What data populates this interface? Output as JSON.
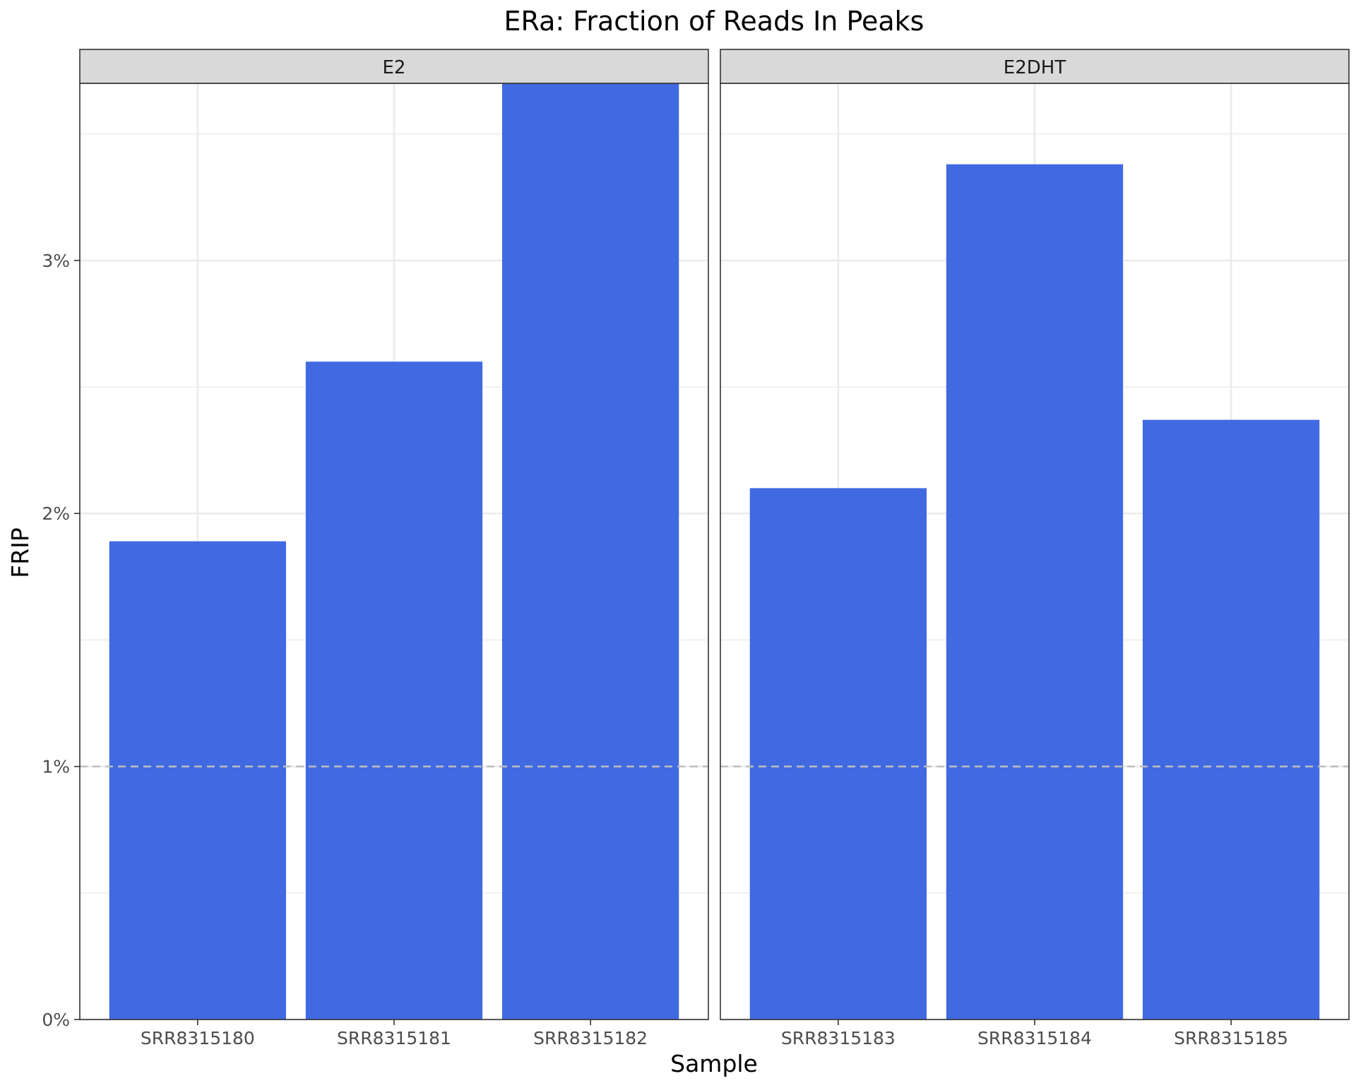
{
  "chart_data": {
    "type": "bar",
    "title": "ERa: Fraction of Reads In Peaks",
    "xlabel": "Sample",
    "ylabel": "FRIP",
    "ylim": [
      0,
      3.7
    ],
    "y_ticks": [
      {
        "value": 0,
        "label": "0%"
      },
      {
        "value": 1,
        "label": "1%"
      },
      {
        "value": 2,
        "label": "2%"
      },
      {
        "value": 3,
        "label": "3%"
      }
    ],
    "reference_line": {
      "value": 1,
      "style": "dashed"
    },
    "grid": true,
    "bar_color": "#4169E1",
    "reference_line_color": "#bebebe",
    "panels": [
      {
        "name": "E2",
        "categories": [
          "SRR8315180",
          "SRR8315181",
          "SRR8315182"
        ],
        "values": [
          1.89,
          2.6,
          3.74
        ]
      },
      {
        "name": "E2DHT",
        "categories": [
          "SRR8315183",
          "SRR8315184",
          "SRR8315185"
        ],
        "values": [
          2.1,
          3.38,
          2.37
        ]
      }
    ]
  }
}
